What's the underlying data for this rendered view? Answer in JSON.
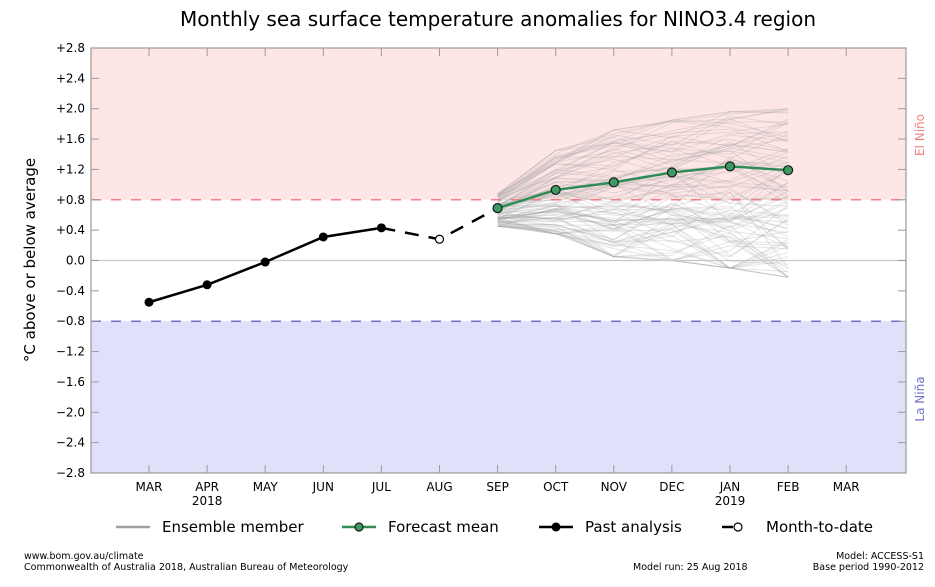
{
  "chart_data": {
    "type": "line",
    "title": "Monthly sea surface temperature anomalies for NINO3.4 region",
    "ylabel": "°C above or below average",
    "xlabel": "",
    "ylim": [
      -2.8,
      2.8
    ],
    "yticks": [
      "+2.8",
      "+2.4",
      "+2.0",
      "+1.6",
      "+1.2",
      "+0.8",
      "+0.4",
      "0.0",
      "-0.4",
      "-0.8",
      "-1.2",
      "-1.6",
      "-2.0",
      "-2.4",
      "-2.8"
    ],
    "ytick_values": [
      2.8,
      2.4,
      2.0,
      1.6,
      1.2,
      0.8,
      0.4,
      0.0,
      -0.4,
      -0.8,
      -1.2,
      -1.6,
      -2.0,
      -2.4,
      -2.8
    ],
    "categories": [
      "MAR",
      "APR",
      "MAY",
      "JUN",
      "JUL",
      "AUG",
      "SEP",
      "OCT",
      "NOV",
      "DEC",
      "JAN",
      "FEB",
      "MAR"
    ],
    "year_labels": [
      {
        "index": 1,
        "label": "2018"
      },
      {
        "index": 10,
        "label": "2019"
      }
    ],
    "grid": false,
    "thresholds": {
      "el_nino": {
        "value": 0.8,
        "label": "El Niño",
        "color": "#f08080",
        "fill": "#ffe6e6"
      },
      "la_nina": {
        "value": -0.8,
        "label": "La Niña",
        "color": "#7070c8",
        "fill": "#e0e0fb"
      }
    },
    "series": [
      {
        "name": "Past analysis",
        "color": "#000000",
        "x_index": [
          0,
          1,
          2,
          3,
          4
        ],
        "values": [
          -0.55,
          -0.32,
          -0.02,
          0.31,
          0.43
        ]
      },
      {
        "name": "Month-to-date",
        "color": "#000000",
        "x_index": [
          5
        ],
        "values": [
          0.28
        ]
      },
      {
        "name": "Forecast mean",
        "color": "#2e8b57",
        "marker_fill": "#3a9a62",
        "x_index": [
          6,
          7,
          8,
          9,
          10,
          11
        ],
        "values": [
          0.69,
          0.93,
          1.03,
          1.16,
          1.24,
          1.19
        ]
      },
      {
        "name": "Ensemble member",
        "color": "#a0a0a0",
        "x_index": [
          6,
          7,
          8,
          9,
          10,
          11
        ],
        "range_min": [
          0.45,
          0.35,
          0.05,
          0.0,
          -0.1,
          -0.22
        ],
        "range_max": [
          0.88,
          1.45,
          1.72,
          1.85,
          1.96,
          2.0
        ],
        "count": 99
      }
    ],
    "legend": {
      "placement": "bottom",
      "entries": [
        "Ensemble member",
        "Forecast mean",
        "Past analysis",
        "Month-to-date"
      ]
    }
  },
  "footer": {
    "url": "www.bom.gov.au/climate",
    "copyright": "Commonwealth of Australia 2018, Australian Bureau of Meteorology",
    "model_run": "Model run: 25 Aug 2018",
    "model": "Model: ACCESS-S1",
    "base_period": "Base period 1990-2012"
  }
}
